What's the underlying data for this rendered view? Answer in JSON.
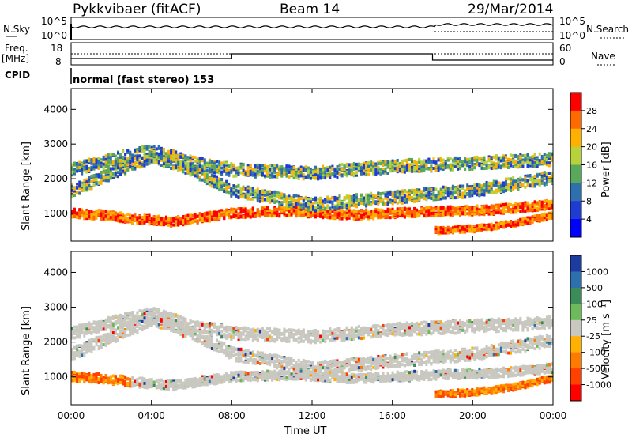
{
  "header": {
    "station": "Pykkvibaer (fitACF)",
    "beam": "Beam 14",
    "date": "29/Mar/2014"
  },
  "top_panels": {
    "nsky_label": "N.Sky",
    "nsearch_label": "N.Search",
    "noise_ticks_left": [
      "10^5",
      "10^0"
    ],
    "noise_ticks_right": [
      "10^5",
      "10^0"
    ],
    "freq_label": "Freq.",
    "freq_unit": "[MHz]",
    "freq_ticks": [
      "18",
      "8"
    ],
    "nave_label": "Nave",
    "nave_ticks": [
      "60",
      "0"
    ],
    "cpid_label": "CPID",
    "cpid_text": "normal (fast stereo) 153"
  },
  "chart_data": [
    {
      "type": "heatmap",
      "title": "",
      "ylabel": "Slant Range [km]",
      "xlabel": "",
      "ylim": [
        200,
        4600
      ],
      "yticks": [
        "4000",
        "3000",
        "2000",
        "1000"
      ],
      "colorbar": {
        "label": "Power [dB]",
        "ticks": [
          "28",
          "24",
          "20",
          "16",
          "12",
          "8",
          "4"
        ],
        "colors": [
          "#ff0000",
          "#ff6a00",
          "#ffb000",
          "#b8d23c",
          "#5aa85a",
          "#2e6fae",
          "#1e3cd2",
          "#0000ff"
        ]
      },
      "bands": [
        {
          "name": "lower echo band",
          "points": [
            [
              0,
              1050
            ],
            [
              1.5,
              1000
            ],
            [
              3,
              900
            ],
            [
              5,
              800
            ],
            [
              8,
              1050
            ],
            [
              11,
              1100
            ],
            [
              14,
              1000
            ],
            [
              16,
              1050
            ],
            [
              18,
              1100
            ],
            [
              21,
              1150
            ],
            [
              24,
              1300
            ]
          ]
        },
        {
          "name": "middle arc",
          "points": [
            [
              0,
              1700
            ],
            [
              2,
              2200
            ],
            [
              4,
              2700
            ],
            [
              6,
              2300
            ],
            [
              8,
              1700
            ],
            [
              12,
              1300
            ],
            [
              16,
              1500
            ],
            [
              20,
              1700
            ],
            [
              24,
              2100
            ]
          ]
        },
        {
          "name": "upper arc",
          "points": [
            [
              0,
              2300
            ],
            [
              2,
              2600
            ],
            [
              4,
              2850
            ],
            [
              6,
              2500
            ],
            [
              8,
              2300
            ],
            [
              12,
              2200
            ],
            [
              16,
              2400
            ],
            [
              20,
              2500
            ],
            [
              24,
              2600
            ]
          ]
        },
        {
          "name": "post-18UT low band",
          "points": [
            [
              18,
              550
            ],
            [
              20,
              600
            ],
            [
              22,
              750
            ],
            [
              24,
              1000
            ]
          ]
        }
      ]
    },
    {
      "type": "heatmap",
      "title": "",
      "ylabel": "Slant Range [km]",
      "xlabel": "Time UT",
      "ylim": [
        200,
        4600
      ],
      "yticks": [
        "4000",
        "3000",
        "2000",
        "1000"
      ],
      "xticks": [
        "00:00",
        "04:00",
        "08:00",
        "12:00",
        "16:00",
        "20:00",
        "00:00"
      ],
      "colorbar": {
        "label": "Velocity [m s⁻¹]",
        "ticks": [
          "1000",
          "500",
          "100",
          "25",
          "-25",
          "-100",
          "-500",
          "-1000"
        ],
        "colors": [
          "#1e3ca0",
          "#2e6fae",
          "#3c8c5a",
          "#6cba5a",
          "#c8c8c0",
          "#ffb000",
          "#ff7a00",
          "#ff4000",
          "#ff0000"
        ]
      },
      "notes": "Ground scatter (grey, |v|<25 m/s) dominates; negative (orange) velocities near 00-03 UT at ~1000 km and after 18 UT."
    }
  ]
}
